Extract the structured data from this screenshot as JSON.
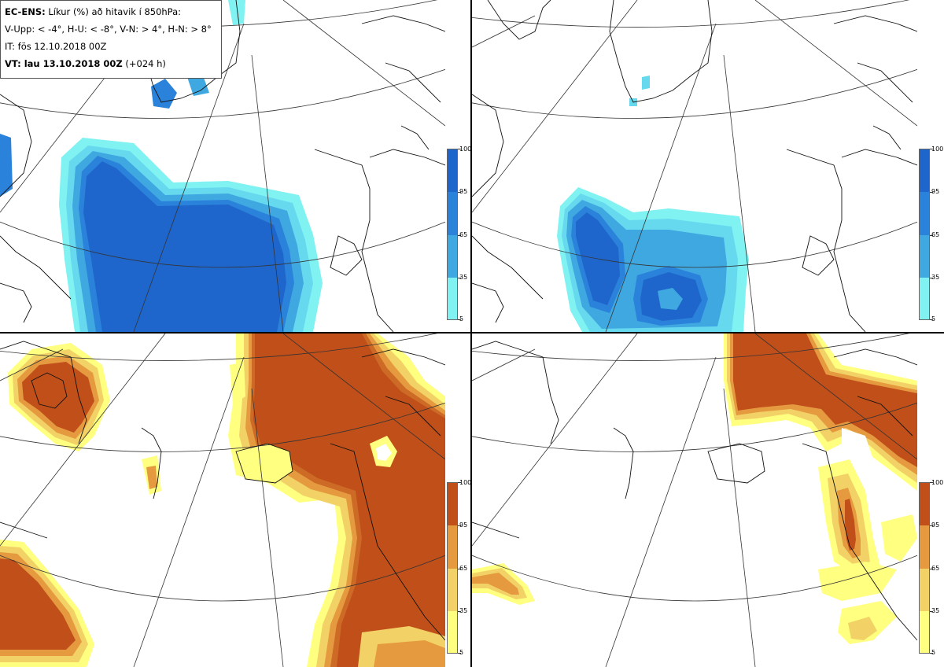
{
  "legend": {
    "line1_bold": "EC-ENS:",
    "line1_text": " Líkur (%) að hitavik í 850hPa:",
    "line2": "V-Upp: < -4°, H-U: < -8°, V-N: > 4°, H-N: > 8°",
    "line3": "IT: fös 12.10.2018 00Z",
    "line4_bold": "VT: lau 13.10.2018 00Z",
    "line4_text": " (+024 h)"
  },
  "colorbar_labels": [
    "100",
    "95",
    "65",
    "35",
    "5"
  ],
  "colors": {
    "cold": [
      "#80f2f2",
      "#66d9ef",
      "#40a8e0",
      "#2a82da",
      "#1f66cc"
    ],
    "warm": [
      "#ffff80",
      "#f2d266",
      "#e69a40",
      "#cc6a26",
      "#c04f1a"
    ]
  },
  "panels": [
    {
      "id": "top-left",
      "variable": "cold anomaly < -4°"
    },
    {
      "id": "top-right",
      "variable": "cold anomaly < -8°"
    },
    {
      "id": "bottom-left",
      "variable": "warm anomaly > 4°"
    },
    {
      "id": "bottom-right",
      "variable": "warm anomaly > 8°"
    }
  ]
}
